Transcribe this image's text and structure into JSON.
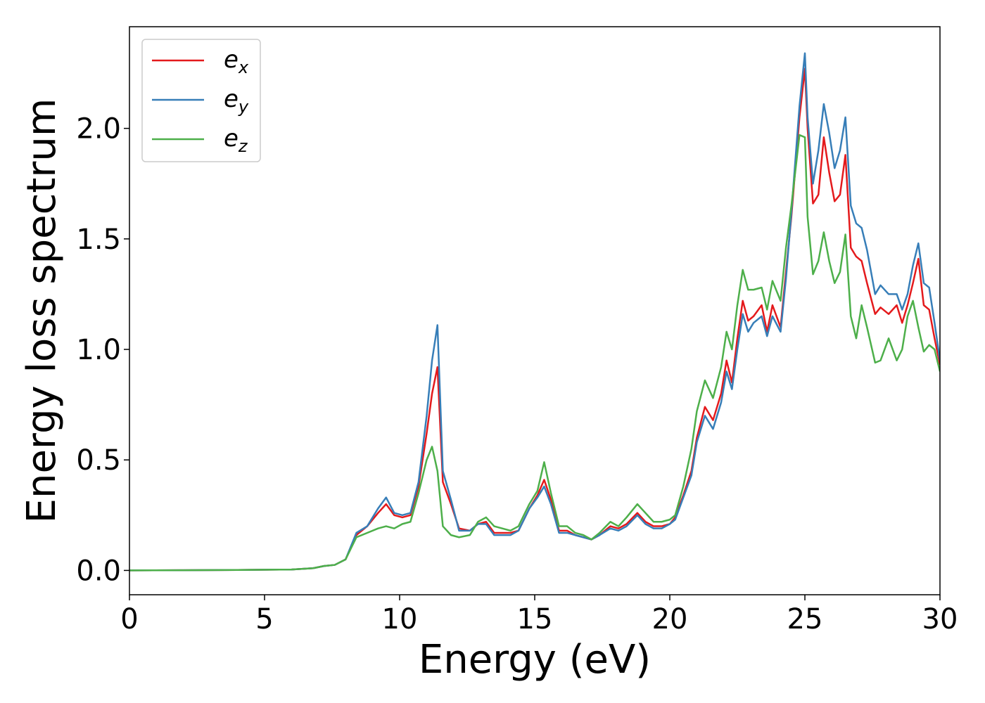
{
  "chart_data": {
    "type": "line",
    "title": "",
    "xlabel": "Energy (eV)",
    "ylabel": "Energy loss spectrum",
    "xlim": [
      0,
      30
    ],
    "ylim": [
      -0.11,
      2.46
    ],
    "xticks": [
      0,
      5,
      10,
      15,
      20,
      25,
      30
    ],
    "yticks": [
      0.0,
      0.5,
      1.0,
      1.5,
      2.0
    ],
    "grid": false,
    "legend_position": "top-left",
    "series": [
      {
        "name": "e",
        "subscript": "x",
        "color": "#e41a1c",
        "x": [
          0,
          2,
          4,
          6,
          6.8,
          7.2,
          7.6,
          8,
          8.4,
          8.8,
          9.2,
          9.5,
          9.8,
          10.1,
          10.4,
          10.7,
          11,
          11.2,
          11.4,
          11.6,
          11.9,
          12.2,
          12.6,
          12.9,
          13.2,
          13.5,
          13.8,
          14.1,
          14.4,
          14.8,
          15.1,
          15.35,
          15.6,
          15.9,
          16.2,
          16.5,
          16.8,
          17.1,
          17.4,
          17.8,
          18.1,
          18.4,
          18.8,
          19.1,
          19.4,
          19.7,
          20,
          20.2,
          20.5,
          20.8,
          21,
          21.3,
          21.6,
          21.9,
          22.1,
          22.3,
          22.5,
          22.7,
          22.9,
          23.1,
          23.4,
          23.6,
          23.8,
          24.1,
          24.3,
          24.5,
          24.8,
          25,
          25.1,
          25.3,
          25.5,
          25.7,
          25.9,
          26.1,
          26.3,
          26.5,
          26.7,
          26.9,
          27.1,
          27.3,
          27.6,
          27.8,
          28.1,
          28.4,
          28.6,
          28.8,
          29,
          29.2,
          29.4,
          29.6,
          29.8,
          30
        ],
        "y": [
          0,
          0.001,
          0.002,
          0.004,
          0.01,
          0.02,
          0.025,
          0.05,
          0.16,
          0.2,
          0.26,
          0.3,
          0.25,
          0.24,
          0.25,
          0.38,
          0.62,
          0.8,
          0.92,
          0.4,
          0.3,
          0.19,
          0.18,
          0.21,
          0.22,
          0.17,
          0.17,
          0.17,
          0.18,
          0.28,
          0.34,
          0.41,
          0.32,
          0.18,
          0.18,
          0.16,
          0.15,
          0.14,
          0.16,
          0.2,
          0.19,
          0.21,
          0.26,
          0.22,
          0.2,
          0.2,
          0.21,
          0.24,
          0.34,
          0.45,
          0.6,
          0.74,
          0.68,
          0.8,
          0.95,
          0.85,
          1.05,
          1.22,
          1.13,
          1.15,
          1.2,
          1.08,
          1.2,
          1.1,
          1.35,
          1.6,
          2.05,
          2.27,
          2.0,
          1.66,
          1.7,
          1.96,
          1.8,
          1.67,
          1.7,
          1.88,
          1.46,
          1.42,
          1.4,
          1.3,
          1.16,
          1.19,
          1.16,
          1.2,
          1.12,
          1.2,
          1.3,
          1.41,
          1.2,
          1.18,
          1.05,
          0.93
        ]
      },
      {
        "name": "e",
        "subscript": "y",
        "color": "#377eb8",
        "x": [
          0,
          2,
          4,
          6,
          6.8,
          7.2,
          7.6,
          8,
          8.4,
          8.8,
          9.2,
          9.5,
          9.8,
          10.1,
          10.4,
          10.7,
          11,
          11.2,
          11.4,
          11.6,
          11.9,
          12.2,
          12.6,
          12.9,
          13.2,
          13.5,
          13.8,
          14.1,
          14.4,
          14.8,
          15.1,
          15.35,
          15.6,
          15.9,
          16.2,
          16.5,
          16.8,
          17.1,
          17.4,
          17.8,
          18.1,
          18.4,
          18.8,
          19.1,
          19.4,
          19.7,
          20,
          20.2,
          20.5,
          20.8,
          21,
          21.3,
          21.6,
          21.9,
          22.1,
          22.3,
          22.5,
          22.7,
          22.9,
          23.1,
          23.4,
          23.6,
          23.8,
          24.1,
          24.3,
          24.5,
          24.8,
          25,
          25.1,
          25.3,
          25.5,
          25.7,
          25.9,
          26.1,
          26.3,
          26.5,
          26.7,
          26.9,
          27.1,
          27.3,
          27.6,
          27.8,
          28.1,
          28.4,
          28.6,
          28.8,
          29,
          29.2,
          29.4,
          29.6,
          29.8,
          30
        ],
        "y": [
          0,
          0.001,
          0.002,
          0.004,
          0.01,
          0.02,
          0.025,
          0.05,
          0.17,
          0.2,
          0.28,
          0.33,
          0.26,
          0.25,
          0.26,
          0.4,
          0.7,
          0.95,
          1.11,
          0.45,
          0.32,
          0.18,
          0.18,
          0.21,
          0.21,
          0.16,
          0.16,
          0.16,
          0.18,
          0.28,
          0.33,
          0.38,
          0.3,
          0.17,
          0.17,
          0.16,
          0.15,
          0.14,
          0.16,
          0.19,
          0.18,
          0.2,
          0.25,
          0.21,
          0.19,
          0.19,
          0.21,
          0.23,
          0.33,
          0.43,
          0.58,
          0.7,
          0.64,
          0.76,
          0.9,
          0.82,
          1.0,
          1.16,
          1.08,
          1.12,
          1.15,
          1.06,
          1.15,
          1.08,
          1.32,
          1.62,
          2.1,
          2.34,
          2.05,
          1.75,
          1.9,
          2.11,
          1.98,
          1.82,
          1.9,
          2.05,
          1.65,
          1.57,
          1.55,
          1.45,
          1.25,
          1.29,
          1.25,
          1.25,
          1.18,
          1.25,
          1.38,
          1.48,
          1.3,
          1.28,
          1.12,
          0.95
        ]
      },
      {
        "name": "e",
        "subscript": "z",
        "color": "#4daf4a",
        "x": [
          0,
          2,
          4,
          6,
          6.8,
          7.2,
          7.6,
          8,
          8.4,
          8.8,
          9.2,
          9.5,
          9.8,
          10.1,
          10.4,
          10.7,
          11,
          11.2,
          11.4,
          11.6,
          11.9,
          12.2,
          12.6,
          12.9,
          13.2,
          13.5,
          13.8,
          14.1,
          14.4,
          14.8,
          15.1,
          15.35,
          15.6,
          15.9,
          16.2,
          16.5,
          16.8,
          17.1,
          17.4,
          17.8,
          18.1,
          18.4,
          18.8,
          19.1,
          19.4,
          19.7,
          20,
          20.2,
          20.5,
          20.8,
          21,
          21.3,
          21.6,
          21.9,
          22.1,
          22.3,
          22.5,
          22.7,
          22.9,
          23.1,
          23.4,
          23.6,
          23.8,
          24.1,
          24.3,
          24.5,
          24.8,
          25,
          25.1,
          25.3,
          25.5,
          25.7,
          25.9,
          26.1,
          26.3,
          26.5,
          26.7,
          26.9,
          27.1,
          27.3,
          27.6,
          27.8,
          28.1,
          28.4,
          28.6,
          28.8,
          29,
          29.2,
          29.4,
          29.6,
          29.8,
          30
        ],
        "y": [
          0,
          0.001,
          0.002,
          0.004,
          0.01,
          0.02,
          0.025,
          0.05,
          0.15,
          0.17,
          0.19,
          0.2,
          0.19,
          0.21,
          0.22,
          0.35,
          0.5,
          0.56,
          0.45,
          0.2,
          0.16,
          0.15,
          0.16,
          0.22,
          0.24,
          0.2,
          0.19,
          0.18,
          0.2,
          0.3,
          0.36,
          0.49,
          0.35,
          0.2,
          0.2,
          0.17,
          0.16,
          0.14,
          0.17,
          0.22,
          0.2,
          0.24,
          0.3,
          0.26,
          0.22,
          0.22,
          0.23,
          0.25,
          0.38,
          0.55,
          0.72,
          0.86,
          0.78,
          0.92,
          1.08,
          1.0,
          1.2,
          1.36,
          1.27,
          1.27,
          1.28,
          1.18,
          1.31,
          1.22,
          1.46,
          1.65,
          1.97,
          1.96,
          1.6,
          1.34,
          1.4,
          1.53,
          1.4,
          1.3,
          1.35,
          1.52,
          1.15,
          1.05,
          1.2,
          1.1,
          0.94,
          0.95,
          1.05,
          0.95,
          1.0,
          1.15,
          1.22,
          1.1,
          0.99,
          1.02,
          1.0,
          0.9
        ]
      }
    ]
  }
}
